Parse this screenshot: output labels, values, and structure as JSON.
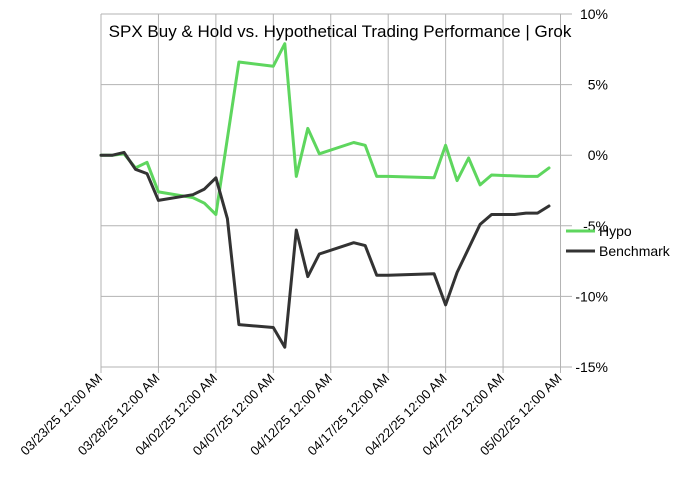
{
  "chart_data": {
    "type": "line",
    "title": "SPX Buy & Hold vs. Hypothetical Trading Performance | Grok",
    "xlabel": "",
    "ylabel": "",
    "x_ticks": [
      "03/23/25 12:00 AM",
      "03/28/25 12:00 AM",
      "04/02/25 12:00 AM",
      "04/07/25 12:00 AM",
      "04/12/25 12:00 AM",
      "04/17/25 12:00 AM",
      "04/22/25 12:00 AM",
      "04/27/25 12:00 AM",
      "05/02/25 12:00 AM"
    ],
    "y_ticks": [
      "10%",
      "5%",
      "0%",
      "-5%",
      "-10%",
      "-15%"
    ],
    "y_tick_values": [
      10,
      5,
      0,
      -5,
      -10,
      -15
    ],
    "xlim": [
      "2025-03-23",
      "2025-05-03"
    ],
    "ylim": [
      -15,
      10
    ],
    "grid": true,
    "legend_position": "right",
    "series": [
      {
        "name": "Hypo",
        "color": "#5ed65e",
        "points": [
          [
            "2025-03-23",
            0.0
          ],
          [
            "2025-03-24",
            0.0
          ],
          [
            "2025-03-25",
            0.1
          ],
          [
            "2025-03-26",
            -0.9
          ],
          [
            "2025-03-27",
            -0.5
          ],
          [
            "2025-03-28",
            -2.6
          ],
          [
            "2025-03-31",
            -3.0
          ],
          [
            "2025-04-01",
            -3.4
          ],
          [
            "2025-04-02",
            -4.2
          ],
          [
            "2025-04-04",
            6.6
          ],
          [
            "2025-04-07",
            6.3
          ],
          [
            "2025-04-08",
            7.9
          ],
          [
            "2025-04-09",
            -1.5
          ],
          [
            "2025-04-10",
            1.9
          ],
          [
            "2025-04-11",
            0.1
          ],
          [
            "2025-04-14",
            0.9
          ],
          [
            "2025-04-15",
            0.7
          ],
          [
            "2025-04-16",
            -1.5
          ],
          [
            "2025-04-17",
            -1.5
          ],
          [
            "2025-04-21",
            -1.6
          ],
          [
            "2025-04-22",
            0.7
          ],
          [
            "2025-04-23",
            -1.8
          ],
          [
            "2025-04-24",
            -0.2
          ],
          [
            "2025-04-25",
            -2.1
          ],
          [
            "2025-04-26",
            -1.4
          ],
          [
            "2025-04-29",
            -1.5
          ],
          [
            "2025-04-30",
            -1.5
          ],
          [
            "2025-05-01",
            -0.9
          ]
        ]
      },
      {
        "name": "Benchmark",
        "color": "#333333",
        "points": [
          [
            "2025-03-23",
            0.0
          ],
          [
            "2025-03-24",
            0.0
          ],
          [
            "2025-03-25",
            0.2
          ],
          [
            "2025-03-26",
            -1.0
          ],
          [
            "2025-03-27",
            -1.3
          ],
          [
            "2025-03-28",
            -3.2
          ],
          [
            "2025-03-31",
            -2.8
          ],
          [
            "2025-04-01",
            -2.4
          ],
          [
            "2025-04-02",
            -1.6
          ],
          [
            "2025-04-03",
            -4.5
          ],
          [
            "2025-04-04",
            -12.0
          ],
          [
            "2025-04-07",
            -12.2
          ],
          [
            "2025-04-08",
            -13.6
          ],
          [
            "2025-04-09",
            -5.3
          ],
          [
            "2025-04-10",
            -8.6
          ],
          [
            "2025-04-11",
            -7.0
          ],
          [
            "2025-04-14",
            -6.2
          ],
          [
            "2025-04-15",
            -6.4
          ],
          [
            "2025-04-16",
            -8.5
          ],
          [
            "2025-04-17",
            -8.5
          ],
          [
            "2025-04-21",
            -8.4
          ],
          [
            "2025-04-22",
            -10.6
          ],
          [
            "2025-04-23",
            -8.3
          ],
          [
            "2025-04-25",
            -4.9
          ],
          [
            "2025-04-26",
            -4.2
          ],
          [
            "2025-04-28",
            -4.2
          ],
          [
            "2025-04-29",
            -4.1
          ],
          [
            "2025-04-30",
            -4.1
          ],
          [
            "2025-05-01",
            -3.6
          ]
        ]
      }
    ]
  }
}
